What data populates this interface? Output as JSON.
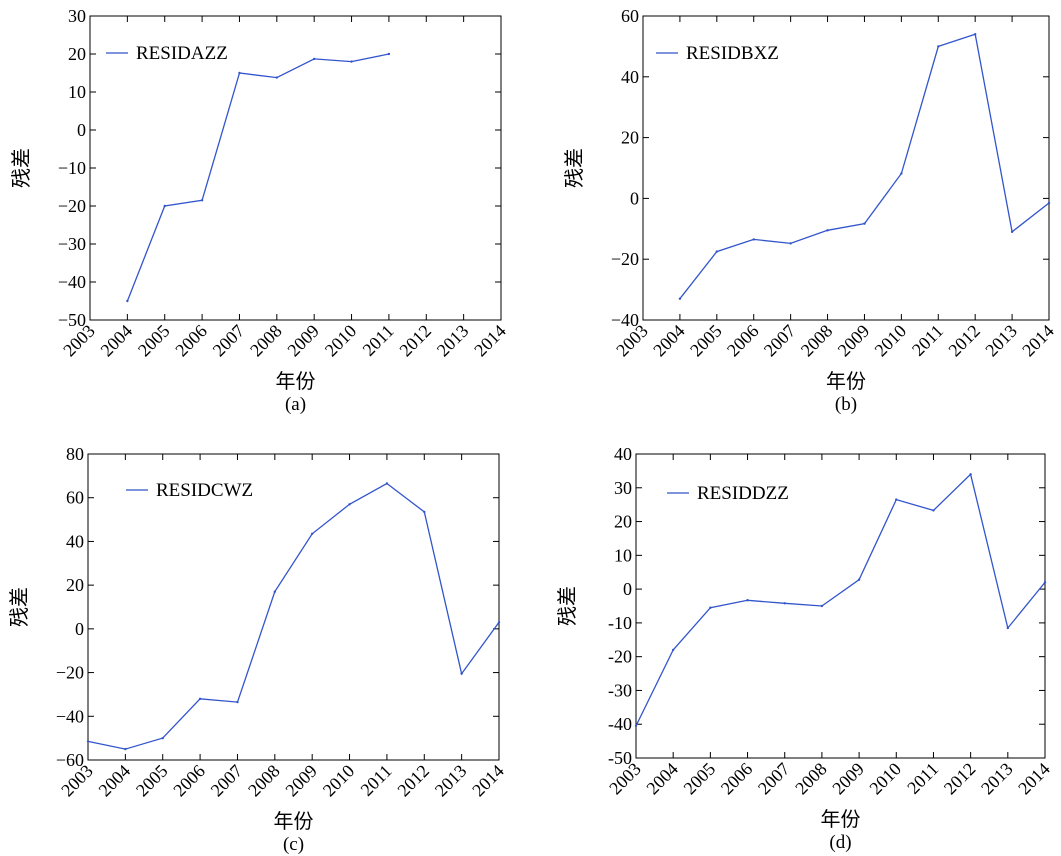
{
  "chart_data": [
    {
      "type": "line",
      "caption": "(a)",
      "xlabel": "年份",
      "ylabel": "残差",
      "x": [
        "2003",
        "2004",
        "2005",
        "2006",
        "2007",
        "2008",
        "2009",
        "2010",
        "2011",
        "2012",
        "2013",
        "2014"
      ],
      "xlim": [
        2003,
        2014
      ],
      "ylim": [
        -50,
        30
      ],
      "yticks": [
        -50,
        -40,
        -30,
        -20,
        -10,
        0,
        10,
        20,
        30
      ],
      "ytick_labels": [
        "−50",
        "−40",
        "−30",
        "−20",
        "−10",
        "0",
        "10",
        "20",
        "30"
      ],
      "legend_position": "top-left",
      "series": [
        {
          "name": "RESIDAZZ",
          "color": "#3355cc",
          "points": [
            [
              2004,
              -45
            ],
            [
              2005,
              -20
            ],
            [
              2006,
              -18.5
            ],
            [
              2007,
              15
            ],
            [
              2008,
              13.8
            ],
            [
              2009,
              18.7
            ],
            [
              2010,
              18
            ],
            [
              2011,
              20
            ]
          ]
        }
      ]
    },
    {
      "type": "line",
      "caption": "(b)",
      "xlabel": "年份",
      "ylabel": "残差",
      "x": [
        "2003",
        "2004",
        "2005",
        "2006",
        "2007",
        "2008",
        "2009",
        "2010",
        "2011",
        "2012",
        "2013",
        "2014"
      ],
      "xlim": [
        2003,
        2014
      ],
      "ylim": [
        -40,
        60
      ],
      "yticks": [
        -40,
        -20,
        0,
        20,
        40,
        60
      ],
      "ytick_labels": [
        "−40",
        "−20",
        "0",
        "20",
        "40",
        "60"
      ],
      "legend_position": "top-left",
      "series": [
        {
          "name": "RESIDBXZ",
          "color": "#3355cc",
          "points": [
            [
              2004,
              -33
            ],
            [
              2005,
              -17.5
            ],
            [
              2006,
              -13.5
            ],
            [
              2007,
              -14.8
            ],
            [
              2008,
              -10.5
            ],
            [
              2009,
              -8.3
            ],
            [
              2010,
              8.2
            ],
            [
              2011,
              50
            ],
            [
              2012,
              54
            ],
            [
              2013,
              -11
            ],
            [
              2014,
              -1.5
            ]
          ]
        }
      ]
    },
    {
      "type": "line",
      "caption": "(c)",
      "xlabel": "年份",
      "ylabel": "残差",
      "x": [
        "2003",
        "2004",
        "2005",
        "2006",
        "2007",
        "2008",
        "2009",
        "2010",
        "2011",
        "2012",
        "2013",
        "2014"
      ],
      "xlim": [
        2003,
        2014
      ],
      "ylim": [
        -60,
        80
      ],
      "yticks": [
        -60,
        -40,
        -20,
        0,
        20,
        40,
        60,
        80
      ],
      "ytick_labels": [
        "−60",
        "−40",
        "−20",
        "0",
        "20",
        "40",
        "60",
        "80"
      ],
      "legend_position": "top-left",
      "series": [
        {
          "name": "RESIDCWZ",
          "color": "#3355cc",
          "points": [
            [
              2003,
              -51.5
            ],
            [
              2004,
              -55
            ],
            [
              2005,
              -50
            ],
            [
              2006,
              -32
            ],
            [
              2007,
              -33.5
            ],
            [
              2008,
              17
            ],
            [
              2009,
              43.5
            ],
            [
              2010,
              57
            ],
            [
              2011,
              66.5
            ],
            [
              2012,
              53.5
            ],
            [
              2013,
              -20.5
            ],
            [
              2014,
              3
            ]
          ]
        }
      ]
    },
    {
      "type": "line",
      "caption": "(d)",
      "xlabel": "年份",
      "ylabel": "残差",
      "x": [
        "2003",
        "2004",
        "2005",
        "2006",
        "2007",
        "2008",
        "2009",
        "2010",
        "2011",
        "2012",
        "2013",
        "2014"
      ],
      "xlim": [
        2003,
        2014
      ],
      "ylim": [
        -50,
        40
      ],
      "yticks": [
        -50,
        -40,
        -30,
        -20,
        -10,
        0,
        10,
        20,
        30,
        40
      ],
      "ytick_labels": [
        "-50",
        "-40",
        "-30",
        "-20",
        "-10",
        "0",
        "10",
        "20",
        "30",
        "40"
      ],
      "legend_position": "top-left",
      "series": [
        {
          "name": "RESIDDZZ",
          "color": "#3355cc",
          "points": [
            [
              2003,
              -40.5
            ],
            [
              2004,
              -18
            ],
            [
              2005,
              -5.5
            ],
            [
              2006,
              -3.3
            ],
            [
              2007,
              -4.2
            ],
            [
              2008,
              -5
            ],
            [
              2009,
              2.8
            ],
            [
              2010,
              26.5
            ],
            [
              2011,
              23.3
            ],
            [
              2012,
              34
            ],
            [
              2013,
              -11.5
            ],
            [
              2014,
              2
            ]
          ]
        }
      ]
    }
  ]
}
